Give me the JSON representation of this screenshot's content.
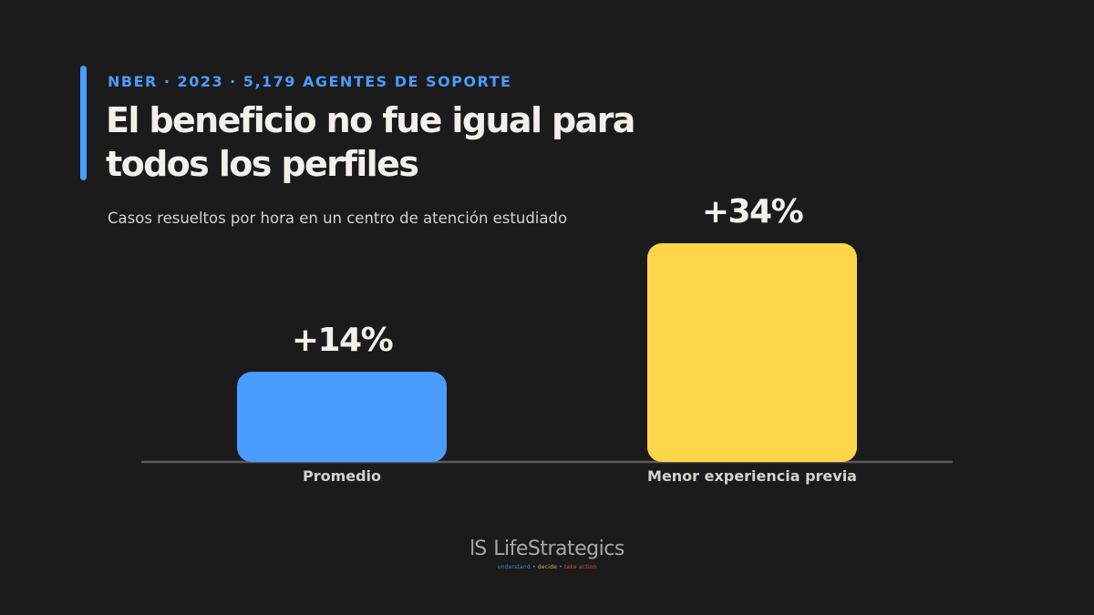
{
  "header": {
    "eyebrow": "NBER · 2023 · 5,179 AGENTES DE SOPORTE",
    "title": "El beneficio no fue igual para todos los perfiles",
    "subtitle": "Casos resueltos por hora en un centro de atención estudiado"
  },
  "colors": {
    "background": "#1b1b1b",
    "accent": "#4a9cff",
    "highlight": "#ffd54a",
    "text": "#f3f0ea"
  },
  "chart_data": {
    "type": "bar",
    "categories": [
      "Promedio",
      "Menor experiencia previa"
    ],
    "values": [
      14,
      34
    ],
    "value_labels": [
      "+14%",
      "+34%"
    ],
    "bar_colors": [
      "#4a9cff",
      "#ffd54a"
    ],
    "title": "",
    "xlabel": "",
    "ylabel": "",
    "ylim": [
      0,
      34
    ],
    "grid": false
  },
  "footer": {
    "logo_mark": "lS",
    "logo_text": "LifeStrategics",
    "tagline": [
      "understand",
      "decide",
      "take action"
    ],
    "tagline_separator": "•"
  }
}
